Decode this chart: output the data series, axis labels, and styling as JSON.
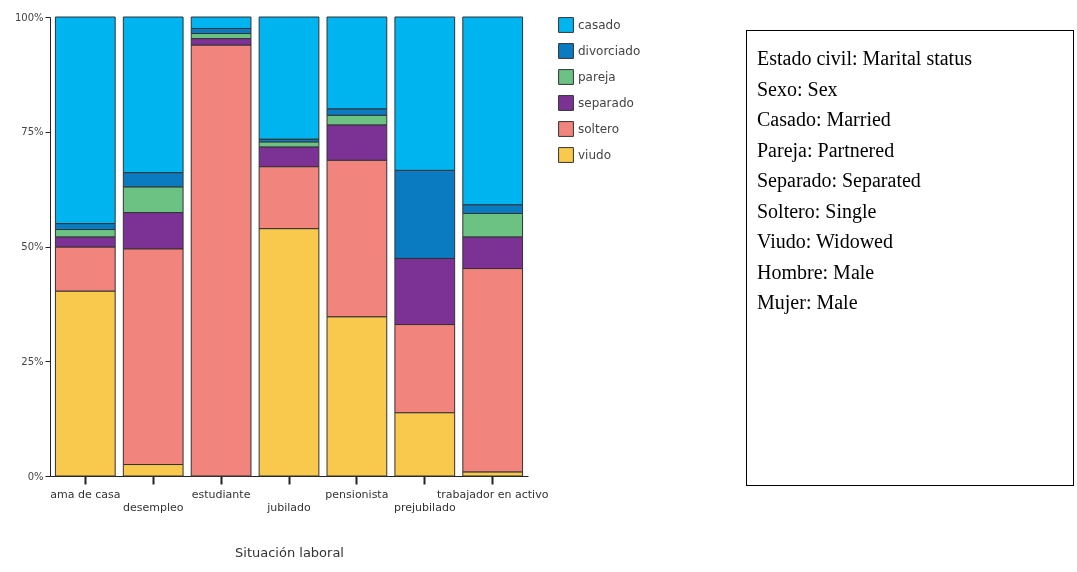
{
  "chart_data": {
    "type": "bar",
    "stacked": true,
    "xlabel": "Situación laboral",
    "categories": [
      "ama de casa",
      "desempleo",
      "estudiante",
      "jubilado",
      "pensionista",
      "prejubilado",
      "trabajador en activo"
    ],
    "series": [
      {
        "name": "viudo",
        "color": "#f9c94d",
        "values": [
          40.3,
          2.5,
          0,
          53.9,
          34.7,
          13.8,
          0.9
        ]
      },
      {
        "name": "soltero",
        "color": "#f1847c",
        "values": [
          9.6,
          47.0,
          93.9,
          13.5,
          34.1,
          19.2,
          44.3
        ]
      },
      {
        "name": "separado",
        "color": "#7b3294",
        "values": [
          2.2,
          7.9,
          1.4,
          4.3,
          7.7,
          14.4,
          6.9
        ]
      },
      {
        "name": "pareja",
        "color": "#6bc283",
        "values": [
          1.6,
          5.6,
          1.1,
          1.1,
          2.1,
          0,
          5.1
        ]
      },
      {
        "name": "divorciado",
        "color": "#0a7bc0",
        "values": [
          1.3,
          3.1,
          1.1,
          0.6,
          1.4,
          19.2,
          1.9
        ]
      },
      {
        "name": "casado",
        "color": "#00b5ef",
        "values": [
          45.0,
          33.9,
          2.5,
          26.6,
          20.0,
          33.4,
          40.9
        ]
      }
    ],
    "ylim": [
      0,
      100
    ],
    "yticks": [
      {
        "value": 0,
        "label": "0%"
      },
      {
        "value": 25,
        "label": "25%"
      },
      {
        "value": 50,
        "label": "50%"
      },
      {
        "value": 75,
        "label": "75%"
      },
      {
        "value": 100,
        "label": "100%"
      }
    ],
    "grid": false,
    "legend": "right",
    "annotations": [
      "Estado civil: Marital status",
      "Sexo: Sex",
      "Casado: Married",
      "Pareja: Partnered",
      "Separado: Separated",
      "Soltero: Single",
      "Viudo: Widowed",
      "Hombre: Male",
      "Mujer: Male"
    ]
  }
}
